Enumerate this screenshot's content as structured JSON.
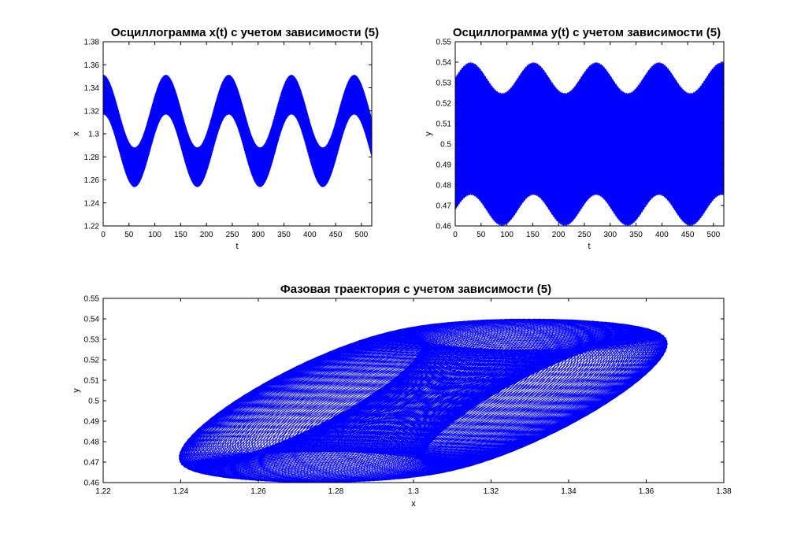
{
  "chart_data": [
    {
      "id": "plot-x",
      "type": "line",
      "title": "Осциллограмма x(t) с учетом зависимости (5)",
      "xlabel": "t",
      "ylabel": "x",
      "xlim": [
        0,
        520
      ],
      "ylim": [
        1.22,
        1.38
      ],
      "xticks": [
        0,
        50,
        100,
        150,
        200,
        250,
        300,
        350,
        400,
        450,
        500
      ],
      "yticks": [
        1.22,
        1.24,
        1.26,
        1.28,
        1.3,
        1.32,
        1.34,
        1.36,
        1.38
      ],
      "xtick_labels": [
        "0",
        "50",
        "100",
        "150",
        "200",
        "250",
        "300",
        "350",
        "400",
        "450",
        "500"
      ],
      "ytick_labels": [
        "1.22",
        "1.24",
        "1.26",
        "1.28",
        "1.3",
        "1.32",
        "1.34",
        "1.36",
        "1.38"
      ],
      "grid": false,
      "series": [
        {
          "color": "#0000ff",
          "signal": {
            "center": 1.3025,
            "slow_amplitude": 0.0315,
            "slow_period": 121.5,
            "slow_phase_t": 0,
            "fast_amplitude": 0.0315,
            "fast_period": 1.0
          },
          "envelope": {
            "t": [
              0,
              30,
              60,
              90,
              121,
              151,
              182,
              212,
              243,
              273,
              304,
              334,
              365,
              395,
              426,
              456,
              487,
              517
            ],
            "x_max": [
              1.366,
              1.332,
              1.302,
              1.332,
              1.366,
              1.334,
              1.301,
              1.333,
              1.366,
              1.334,
              1.301,
              1.333,
              1.366,
              1.334,
              1.302,
              1.334,
              1.367,
              1.333
            ],
            "x_min": [
              1.332,
              1.273,
              1.239,
              1.272,
              1.333,
              1.272,
              1.239,
              1.272,
              1.333,
              1.272,
              1.239,
              1.272,
              1.334,
              1.272,
              1.239,
              1.272,
              1.335,
              1.305
            ]
          }
        }
      ]
    },
    {
      "id": "plot-y",
      "type": "line",
      "title": "Осциллограмма y(t) с учетом зависимости (5)",
      "xlabel": "t",
      "ylabel": "y",
      "xlim": [
        0,
        520
      ],
      "ylim": [
        0.46,
        0.55
      ],
      "xticks": [
        0,
        50,
        100,
        150,
        200,
        250,
        300,
        350,
        400,
        450,
        500
      ],
      "yticks": [
        0.46,
        0.47,
        0.48,
        0.49,
        0.5,
        0.51,
        0.52,
        0.53,
        0.54,
        0.55
      ],
      "xtick_labels": [
        "0",
        "50",
        "100",
        "150",
        "200",
        "250",
        "300",
        "350",
        "400",
        "450",
        "500"
      ],
      "ytick_labels": [
        "0.46",
        "0.47",
        "0.48",
        "0.49",
        "0.5",
        "0.51",
        "0.52",
        "0.53",
        "0.54",
        "0.55"
      ],
      "grid": false,
      "series": [
        {
          "color": "#0000ff",
          "signal": {
            "center": 0.5,
            "slow_amplitude": 0.0075,
            "slow_period": 121.5,
            "slow_phase_t": 30,
            "fast_amplitude": 0.0325,
            "fast_period": 1.0
          },
          "envelope": {
            "t": [
              0,
              30,
              60,
              91,
              121,
              152,
              182,
              213,
              243,
              274,
              304,
              335,
              365,
              396,
              426,
              457,
              487,
              517
            ],
            "y_max": [
              0.524,
              0.54,
              0.525,
              0.508,
              0.525,
              0.54,
              0.525,
              0.508,
              0.525,
              0.54,
              0.525,
              0.508,
              0.525,
              0.54,
              0.525,
              0.508,
              0.525,
              0.54
            ],
            "y_min": [
              0.483,
              0.492,
              0.475,
              0.46,
              0.475,
              0.493,
              0.475,
              0.46,
              0.475,
              0.493,
              0.475,
              0.46,
              0.475,
              0.493,
              0.475,
              0.46,
              0.475,
              0.492
            ]
          }
        }
      ]
    },
    {
      "id": "plot-phase",
      "type": "line",
      "title": "Фазовая траектория с учетом зависимости (5)",
      "xlabel": "x",
      "ylabel": "y",
      "xlim": [
        1.22,
        1.38
      ],
      "ylim": [
        0.46,
        0.55
      ],
      "xticks": [
        1.22,
        1.24,
        1.26,
        1.28,
        1.3,
        1.32,
        1.34,
        1.36,
        1.38
      ],
      "yticks": [
        0.46,
        0.47,
        0.48,
        0.49,
        0.5,
        0.51,
        0.52,
        0.53,
        0.54,
        0.55
      ],
      "xtick_labels": [
        "1.22",
        "1.24",
        "1.26",
        "1.28",
        "1.3",
        "1.32",
        "1.34",
        "1.36",
        "1.38"
      ],
      "ytick_labels": [
        "0.46",
        "0.47",
        "0.48",
        "0.49",
        "0.5",
        "0.51",
        "0.52",
        "0.53",
        "0.54",
        "0.55"
      ],
      "grid": false,
      "series": [
        {
          "color": "#0000ff",
          "signal": {
            "x_center": 1.3025,
            "x_slow_amplitude": 0.0315,
            "x_fast_amplitude": 0.0315,
            "y_center": 0.5,
            "y_slow_amplitude": 0.0075,
            "y_fast_amplitude": 0.0325,
            "slow_period": 121.5,
            "y_slow_phase_t": 30,
            "fast_period": 1.0,
            "phase_lag_rad": 0.55
          },
          "bounds": {
            "x": [
              1.2385,
              1.3675
            ],
            "y": [
              0.4605,
              0.54
            ]
          }
        }
      ]
    }
  ]
}
